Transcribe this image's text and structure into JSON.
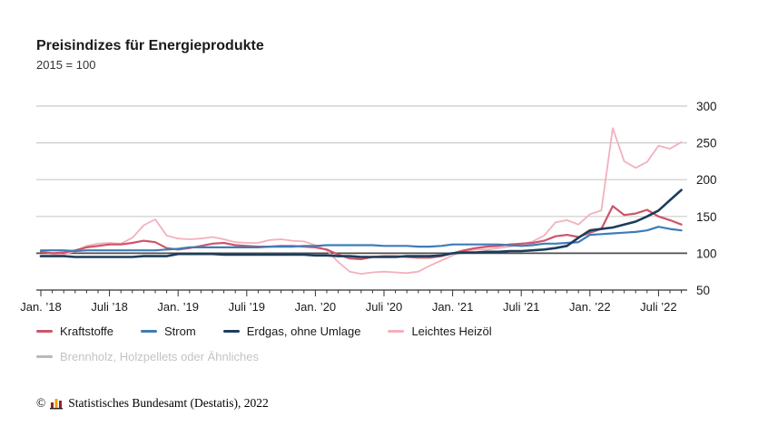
{
  "header": {
    "title": "Preisindizes für Energieprodukte",
    "subtitle": "2015 = 100"
  },
  "chart_data": {
    "type": "line",
    "title": "Preisindizes für Energieprodukte",
    "subtitle": "2015 = 100",
    "x_unit": "month",
    "x_range": [
      "Jan 2018",
      "Sep 2022"
    ],
    "x_tick_labels": [
      "Jan. ’18",
      "Juli ’18",
      "Jan. ’19",
      "Juli ’19",
      "Jan. ’20",
      "Juli ’20",
      "Jan. ’21",
      "Juli ’21",
      "Jan. ’22",
      "Juli ’22"
    ],
    "y_ticks": [
      50,
      100,
      150,
      200,
      250,
      300
    ],
    "ylim": [
      50,
      300
    ],
    "baseline_value": 100,
    "grid": true,
    "legend_position": "bottom",
    "colors": {
      "grid": "#cbcbcb",
      "baseline": "#4d4d4d",
      "axis": "#333333"
    },
    "series": [
      {
        "name": "Kraftstoffe",
        "color": "#cd5569",
        "hidden": false,
        "values": [
          102,
          100,
          101,
          104,
          108,
          110,
          112,
          112,
          114,
          117,
          115,
          107,
          105,
          107,
          110,
          113,
          114,
          111,
          110,
          109,
          109,
          110,
          110,
          109,
          108,
          105,
          98,
          93,
          92,
          95,
          96,
          96,
          95,
          94,
          94,
          96,
          100,
          104,
          107,
          109,
          110,
          112,
          113,
          114,
          117,
          123,
          125,
          122,
          128,
          133,
          164,
          152,
          154,
          159,
          150,
          145,
          139
        ]
      },
      {
        "name": "Strom",
        "color": "#3d7cb8",
        "hidden": false,
        "values": [
          104,
          104,
          104,
          103,
          104,
          104,
          104,
          104,
          104,
          104,
          104,
          105,
          106,
          108,
          108,
          108,
          108,
          108,
          108,
          108,
          109,
          109,
          109,
          110,
          110,
          111,
          111,
          111,
          111,
          111,
          110,
          110,
          110,
          109,
          109,
          110,
          112,
          112,
          112,
          112,
          112,
          111,
          110,
          111,
          113,
          113,
          114,
          115,
          125,
          126,
          127,
          128,
          129,
          131,
          136,
          133,
          131
        ]
      },
      {
        "name": "Erdgas, ohne Umlage",
        "color": "#1c3d5c",
        "hidden": false,
        "values": [
          96,
          96,
          96,
          95,
          95,
          95,
          95,
          95,
          95,
          96,
          96,
          96,
          99,
          99,
          99,
          99,
          98,
          98,
          98,
          98,
          98,
          98,
          98,
          98,
          97,
          97,
          96,
          96,
          95,
          95,
          95,
          95,
          96,
          96,
          96,
          97,
          100,
          101,
          101,
          102,
          102,
          103,
          103,
          104,
          105,
          107,
          110,
          121,
          131,
          133,
          135,
          139,
          143,
          150,
          158,
          172,
          186
        ]
      },
      {
        "name": "Leichtes Heizöl",
        "color": "#f3b0bd",
        "hidden": false,
        "values": [
          103,
          99,
          98,
          103,
          110,
          113,
          114,
          113,
          121,
          138,
          146,
          124,
          120,
          119,
          120,
          122,
          119,
          115,
          114,
          114,
          118,
          119,
          117,
          116,
          111,
          104,
          88,
          75,
          72,
          74,
          75,
          74,
          73,
          75,
          83,
          90,
          97,
          103,
          105,
          105,
          107,
          109,
          112,
          116,
          124,
          142,
          145,
          139,
          153,
          158,
          270,
          225,
          216,
          224,
          246,
          242,
          251
        ]
      },
      {
        "name": "Brennholz, Holzpellets oder Ähnliches",
        "color": "#b9b9b9",
        "hidden": true,
        "values": []
      }
    ]
  },
  "footer": {
    "copyright": "©",
    "text": "Statistisches Bundesamt (Destatis), 2022"
  }
}
